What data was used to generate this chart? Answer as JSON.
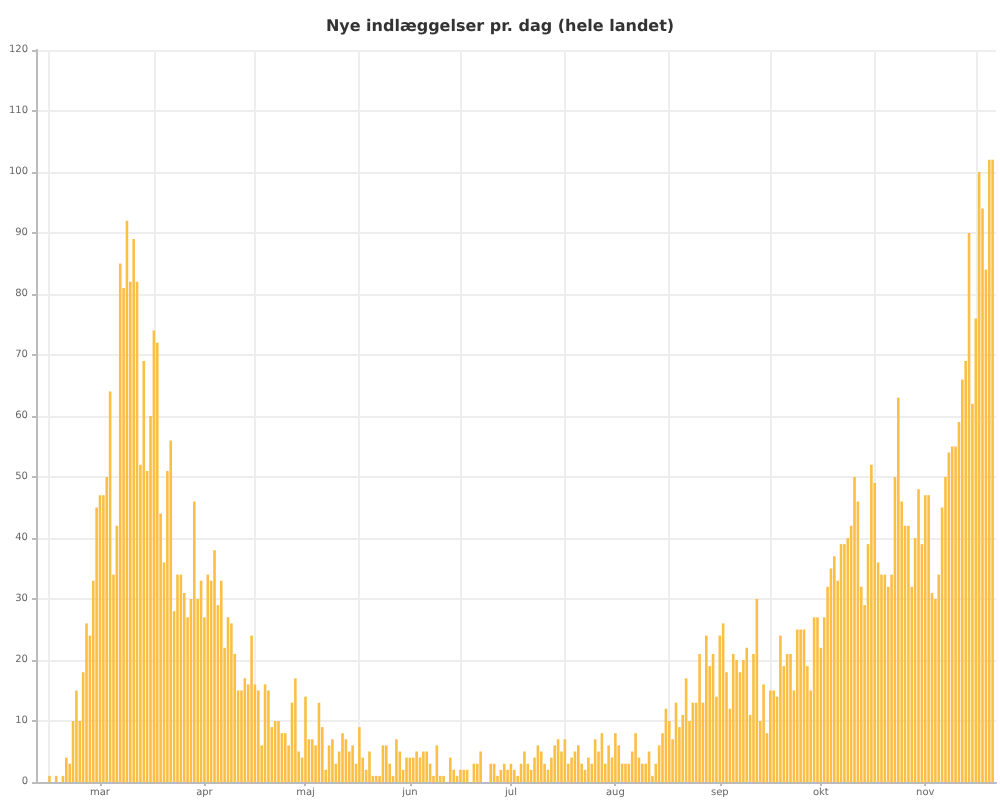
{
  "chart_data": {
    "type": "bar",
    "title": "Nye indlæggelser pr. dag (hele landet)",
    "x": [
      "--03-01",
      "--03-02",
      "--03-03",
      "--03-04",
      "--03-05",
      "--03-06",
      "--03-07",
      "--03-08",
      "--03-09",
      "--03-10",
      "--03-11",
      "--03-12",
      "--03-13",
      "--03-14",
      "--03-15",
      "--03-16",
      "--03-17",
      "--03-18",
      "--03-19",
      "--03-20",
      "--03-21",
      "--03-22",
      "--03-23",
      "--03-24",
      "--03-25",
      "--03-26",
      "--03-27",
      "--03-28",
      "--03-29",
      "--03-30",
      "--03-31",
      "--04-01",
      "--04-02",
      "--04-03",
      "--04-04",
      "--04-05",
      "--04-06",
      "--04-07",
      "--04-08",
      "--04-09",
      "--04-10",
      "--04-11",
      "--04-12",
      "--04-13",
      "--04-14",
      "--04-15",
      "--04-16",
      "--04-17",
      "--04-18",
      "--04-19",
      "--04-20",
      "--04-21",
      "--04-22",
      "--04-23",
      "--04-24",
      "--04-25",
      "--04-26",
      "--04-27",
      "--04-28",
      "--04-29",
      "--04-30",
      "--05-01",
      "--05-02",
      "--05-03",
      "--05-04",
      "--05-05",
      "--05-06",
      "--05-07",
      "--05-08",
      "--05-09",
      "--05-10",
      "--05-11",
      "--05-12",
      "--05-13",
      "--05-14",
      "--05-15",
      "--05-16",
      "--05-17",
      "--05-18",
      "--05-19",
      "--05-20",
      "--05-21",
      "--05-22",
      "--05-23",
      "--05-24",
      "--05-25",
      "--05-26",
      "--05-27",
      "--05-28",
      "--05-29",
      "--05-30",
      "--05-31",
      "--06-01",
      "--06-02",
      "--06-03",
      "--06-04",
      "--06-05",
      "--06-06",
      "--06-07",
      "--06-08",
      "--06-09",
      "--06-10",
      "--06-11",
      "--06-12",
      "--06-13",
      "--06-14",
      "--06-15",
      "--06-16",
      "--06-17",
      "--06-18",
      "--06-19",
      "--06-20",
      "--06-21",
      "--06-22",
      "--06-23",
      "--06-24",
      "--06-25",
      "--06-26",
      "--06-27",
      "--06-28",
      "--06-29",
      "--06-30",
      "--07-01",
      "--07-02",
      "--07-03",
      "--07-04",
      "--07-05",
      "--07-06",
      "--07-07",
      "--07-08",
      "--07-09",
      "--07-10",
      "--07-11",
      "--07-12",
      "--07-13",
      "--07-14",
      "--07-15",
      "--07-16",
      "--07-17",
      "--07-18",
      "--07-19",
      "--07-20",
      "--07-21",
      "--07-22",
      "--07-23",
      "--07-24",
      "--07-25",
      "--07-26",
      "--07-27",
      "--07-28",
      "--07-29",
      "--07-30",
      "--07-31",
      "--08-01",
      "--08-02",
      "--08-03",
      "--08-04",
      "--08-05",
      "--08-06",
      "--08-07",
      "--08-08",
      "--08-09",
      "--08-10",
      "--08-11",
      "--08-12",
      "--08-13",
      "--08-14",
      "--08-15",
      "--08-16",
      "--08-17",
      "--08-18",
      "--08-19",
      "--08-20",
      "--08-21",
      "--08-22",
      "--08-23",
      "--08-24",
      "--08-25",
      "--08-26",
      "--08-27",
      "--08-28",
      "--08-29",
      "--08-30",
      "--08-31",
      "--09-01",
      "--09-02",
      "--09-03",
      "--09-04",
      "--09-05",
      "--09-06",
      "--09-07",
      "--09-08",
      "--09-09",
      "--09-10",
      "--09-11",
      "--09-12",
      "--09-13",
      "--09-14",
      "--09-15",
      "--09-16",
      "--09-17",
      "--09-18",
      "--09-19",
      "--09-20",
      "--09-21",
      "--09-22",
      "--09-23",
      "--09-24",
      "--09-25",
      "--09-26",
      "--09-27",
      "--09-28",
      "--09-29",
      "--09-30",
      "--10-01",
      "--10-02",
      "--10-03",
      "--10-04",
      "--10-05",
      "--10-06",
      "--10-07",
      "--10-08",
      "--10-09",
      "--10-10",
      "--10-11",
      "--10-12",
      "--10-13",
      "--10-14",
      "--10-15",
      "--10-16",
      "--10-17",
      "--10-18",
      "--10-19",
      "--10-20",
      "--10-21",
      "--10-22",
      "--10-23",
      "--10-24",
      "--10-25",
      "--10-26",
      "--10-27",
      "--10-28",
      "--10-29",
      "--10-30",
      "--10-31",
      "--11-01",
      "--11-02",
      "--11-03",
      "--11-04",
      "--11-05",
      "--11-06",
      "--11-07",
      "--11-08",
      "--11-09",
      "--11-10",
      "--11-11",
      "--11-12",
      "--11-13",
      "--11-14",
      "--11-15",
      "--11-16",
      "--11-17",
      "--11-18",
      "--11-19",
      "--11-20",
      "--11-21",
      "--11-22",
      "--11-23",
      "--11-24",
      "--11-25",
      "--11-26",
      "--11-27",
      "--11-28",
      "--11-29",
      "--11-30",
      "--12-01",
      "--12-02",
      "--12-03",
      "--12-04",
      "--12-05",
      "--12-06"
    ],
    "values": [
      1,
      0,
      1,
      0,
      1,
      4,
      3,
      10,
      15,
      10,
      18,
      26,
      24,
      33,
      45,
      47,
      47,
      50,
      64,
      34,
      42,
      85,
      81,
      92,
      82,
      89,
      82,
      52,
      69,
      51,
      60,
      74,
      72,
      44,
      36,
      51,
      56,
      28,
      34,
      34,
      31,
      27,
      30,
      46,
      30,
      33,
      27,
      34,
      33,
      38,
      29,
      33,
      22,
      27,
      26,
      21,
      15,
      15,
      17,
      16,
      24,
      16,
      15,
      6,
      16,
      15,
      9,
      10,
      10,
      8,
      8,
      6,
      13,
      17,
      5,
      4,
      14,
      7,
      7,
      6,
      13,
      9,
      2,
      6,
      7,
      3,
      5,
      8,
      7,
      5,
      6,
      3,
      9,
      4,
      2,
      5,
      1,
      1,
      1,
      6,
      6,
      3,
      1,
      7,
      5,
      2,
      4,
      4,
      4,
      5,
      4,
      5,
      5,
      3,
      1,
      6,
      1,
      1,
      0,
      4,
      2,
      1,
      2,
      2,
      2,
      0,
      3,
      3,
      5,
      0,
      0,
      3,
      3,
      1,
      2,
      3,
      2,
      3,
      2,
      1,
      3,
      5,
      3,
      2,
      4,
      6,
      5,
      3,
      2,
      4,
      6,
      7,
      5,
      7,
      3,
      4,
      5,
      6,
      3,
      2,
      4,
      3,
      7,
      5,
      8,
      3,
      6,
      4,
      8,
      6,
      3,
      3,
      3,
      5,
      8,
      4,
      3,
      3,
      5,
      1,
      3,
      6,
      8,
      12,
      10,
      7,
      13,
      9,
      11,
      17,
      10,
      13,
      13,
      21,
      13,
      24,
      19,
      21,
      14,
      24,
      26,
      18,
      12,
      21,
      20,
      18,
      20,
      22,
      11,
      21,
      30,
      10,
      16,
      8,
      15,
      15,
      14,
      24,
      19,
      21,
      21,
      15,
      25,
      25,
      25,
      19,
      15,
      27,
      27,
      22,
      27,
      32,
      35,
      37,
      33,
      39,
      39,
      40,
      42,
      50,
      46,
      32,
      29,
      39,
      52,
      49,
      36,
      34,
      34,
      32,
      34,
      50,
      63,
      46,
      42,
      42,
      32,
      40,
      48,
      39,
      47,
      47,
      31,
      30,
      34,
      45,
      50,
      54,
      55,
      55,
      59,
      66,
      69,
      90,
      62,
      76,
      100,
      94,
      84,
      102,
      102
    ],
    "color": "#fcbf45",
    "xlim": [
      "--02-26",
      "--12-07"
    ],
    "xticks": [
      {
        "value": "--03-01",
        "label": null
      },
      {
        "value": "--03-16",
        "label": "mar"
      },
      {
        "value": "--04-01",
        "label": null
      },
      {
        "value": "--04-16",
        "label": "apr"
      },
      {
        "value": "--05-01",
        "label": null
      },
      {
        "value": "--05-16",
        "label": "maj"
      },
      {
        "value": "--06-01",
        "label": null
      },
      {
        "value": "--06-16",
        "label": "jun"
      },
      {
        "value": "--07-01",
        "label": null
      },
      {
        "value": "--07-16",
        "label": "jul"
      },
      {
        "value": "--08-01",
        "label": null
      },
      {
        "value": "--08-16",
        "label": "aug"
      },
      {
        "value": "--09-01",
        "label": null
      },
      {
        "value": "--09-16",
        "label": "sep"
      },
      {
        "value": "--10-01",
        "label": null
      },
      {
        "value": "--10-16",
        "label": "okt"
      },
      {
        "value": "--11-01",
        "label": null
      },
      {
        "value": "--11-16",
        "label": "nov"
      },
      {
        "value": "--12-01",
        "label": null
      }
    ],
    "ylim": [
      0,
      120
    ],
    "yticks": [
      0,
      10,
      20,
      30,
      40,
      50,
      60,
      70,
      80,
      90,
      100,
      110,
      120
    ],
    "grid": true
  }
}
